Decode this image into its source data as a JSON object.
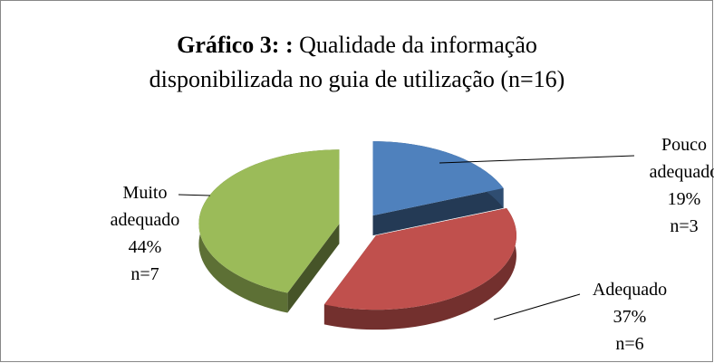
{
  "chart_data": {
    "type": "pie",
    "title": {
      "bold": "Gráfico 3: :",
      "lines": [
        "Qualidade da informação",
        "disponibilizada no guia de utilização (n=16)"
      ]
    },
    "categories": [
      "Pouco adequado",
      "Adequado",
      "Muito adequado"
    ],
    "values": [
      19,
      37,
      44
    ],
    "value_labels": [
      "19%",
      "37%",
      "44%"
    ],
    "annotations": [
      "n=3",
      "n=6",
      "n=7"
    ],
    "colors": [
      "#4f81bd",
      "#c0504d",
      "#9bbb59"
    ],
    "exploded": true,
    "three_d": true
  }
}
